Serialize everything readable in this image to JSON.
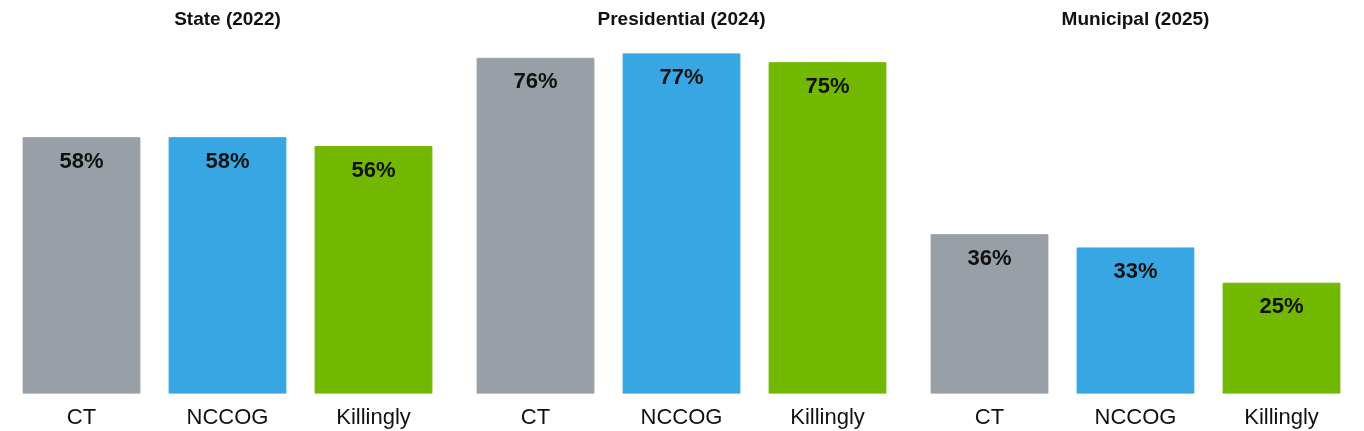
{
  "chart_data": [
    {
      "type": "bar",
      "title": "State (2022)",
      "categories": [
        "CT",
        "NCCOG",
        "Killingly"
      ],
      "values": [
        58,
        58,
        56
      ],
      "colors": [
        "#989fa7",
        "#38a6e3",
        "#72b800"
      ],
      "value_labels": [
        "58%",
        "58%",
        "56%"
      ],
      "tick_labels": "x"
    },
    {
      "type": "bar",
      "title": "Presidential (2024)",
      "categories": [
        "CT",
        "NCCOG",
        "Killingly"
      ],
      "values": [
        76,
        77,
        75
      ],
      "colors": [
        "#989fa7",
        "#38a6e3",
        "#72b800"
      ],
      "value_labels": [
        "76%",
        "77%",
        "75%"
      ],
      "tick_labels": "x"
    },
    {
      "type": "bar",
      "title": "Municipal (2025)",
      "categories": [
        "CT",
        "NCCOG",
        "Killingly"
      ],
      "values": [
        36,
        33,
        25
      ],
      "colors": [
        "#989fa7",
        "#38a6e3",
        "#72b800"
      ],
      "value_labels": [
        "36%",
        "33%",
        "25%"
      ],
      "tick_labels": "x"
    }
  ]
}
